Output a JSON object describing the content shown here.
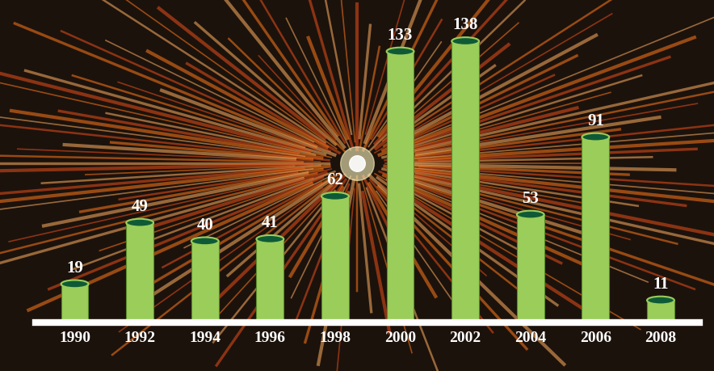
{
  "chart_data": {
    "type": "bar",
    "categories": [
      "1990",
      "1992",
      "1994",
      "1996",
      "1998",
      "2000",
      "2002",
      "2004",
      "2006",
      "2008"
    ],
    "values": [
      19,
      49,
      40,
      41,
      62,
      133,
      138,
      53,
      91,
      11
    ],
    "color": "#9acd5a",
    "data_labels": true,
    "tick_labels": "x"
  }
}
